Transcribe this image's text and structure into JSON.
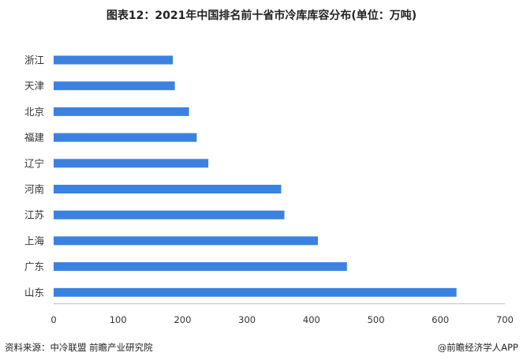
{
  "title": "图表12：2021年中国排名前十省市冷库库容分布(单位：万吨)",
  "source": "资料来源：中冷联盟 前瞻产业研究院",
  "app_credit": "@前瞻经济学人APP",
  "watermark": "前瞻产业研究院",
  "colors": {
    "bar": "#3b82e0",
    "axis": "#999999",
    "text": "#333333"
  },
  "chart_data": {
    "type": "bar",
    "orientation": "horizontal",
    "title": "图表12：2021年中国排名前十省市冷库库容分布(单位：万吨)",
    "categories": [
      "浙江",
      "天津",
      "北京",
      "福建",
      "辽宁",
      "河南",
      "江苏",
      "上海",
      "广东",
      "山东"
    ],
    "values": [
      185,
      188,
      210,
      222,
      240,
      353,
      358,
      410,
      455,
      625
    ],
    "xlim": [
      0,
      700
    ],
    "xticks": [
      0,
      100,
      200,
      300,
      400,
      500,
      600,
      700
    ],
    "xlabel": "",
    "ylabel": "",
    "grid": false,
    "legend": "none"
  }
}
